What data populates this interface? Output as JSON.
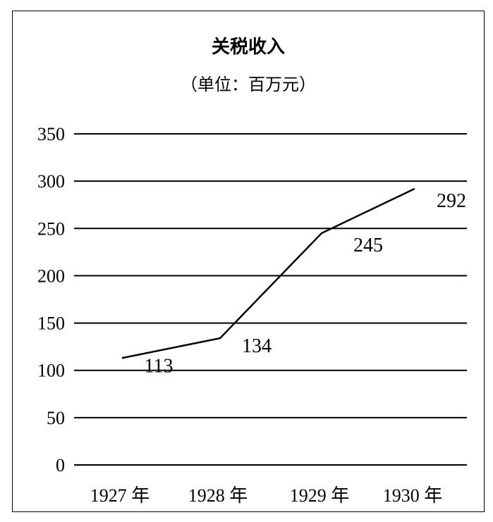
{
  "chart_data": {
    "type": "line",
    "title": "关税收入",
    "subtitle": "（单位：百万元）",
    "categories": [
      "1927 年",
      "1928 年",
      "1929 年",
      "1930 年"
    ],
    "values": [
      113,
      134,
      245,
      292
    ],
    "data_labels": [
      "113",
      "134",
      "245",
      "292"
    ],
    "yticks": [
      "0",
      "50",
      "100",
      "150",
      "200",
      "250",
      "300",
      "350"
    ],
    "ylim": [
      0,
      350
    ],
    "grid": true,
    "line_color": "#000000"
  }
}
